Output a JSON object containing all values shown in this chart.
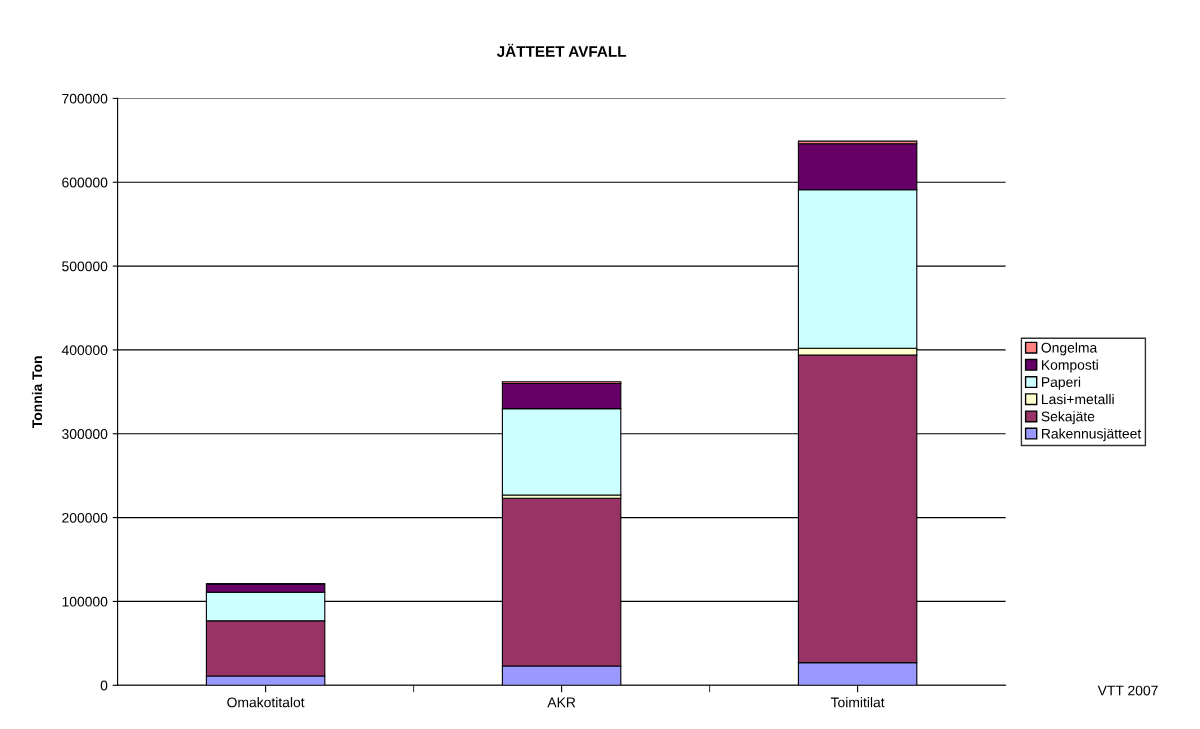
{
  "chart_data": {
    "type": "bar",
    "title": "JÄTTEET AVFALL",
    "ylabel": "Tonnia Ton",
    "categories": [
      "Omakotitalot",
      "AKR",
      "Toimitilat"
    ],
    "stacked": true,
    "series": [
      {
        "name": "Rakennusjätteet",
        "color": "#9999ff",
        "values": [
          11000,
          23000,
          27000
        ]
      },
      {
        "name": "Sekajäte",
        "color": "#993366",
        "values": [
          66000,
          200000,
          367000
        ]
      },
      {
        "name": "Lasi+metalli",
        "color": "#ffffcc",
        "values": [
          null,
          4000,
          8000
        ]
      },
      {
        "name": "Paperi",
        "color": "#ccffff",
        "values": [
          34000,
          103000,
          189000
        ]
      },
      {
        "name": "Komposti",
        "color": "#660066",
        "values": [
          10000,
          30000,
          55000
        ]
      },
      {
        "name": "Ongelma",
        "color": "#ff8080",
        "values": [
          null,
          2000,
          3000
        ]
      }
    ],
    "ylim": [
      0,
      700000
    ],
    "yticks": [
      0,
      100000,
      200000,
      300000,
      400000,
      500000,
      600000,
      700000
    ],
    "grid": "y",
    "legend": "right",
    "annotations": [
      "VTT 2007"
    ]
  }
}
